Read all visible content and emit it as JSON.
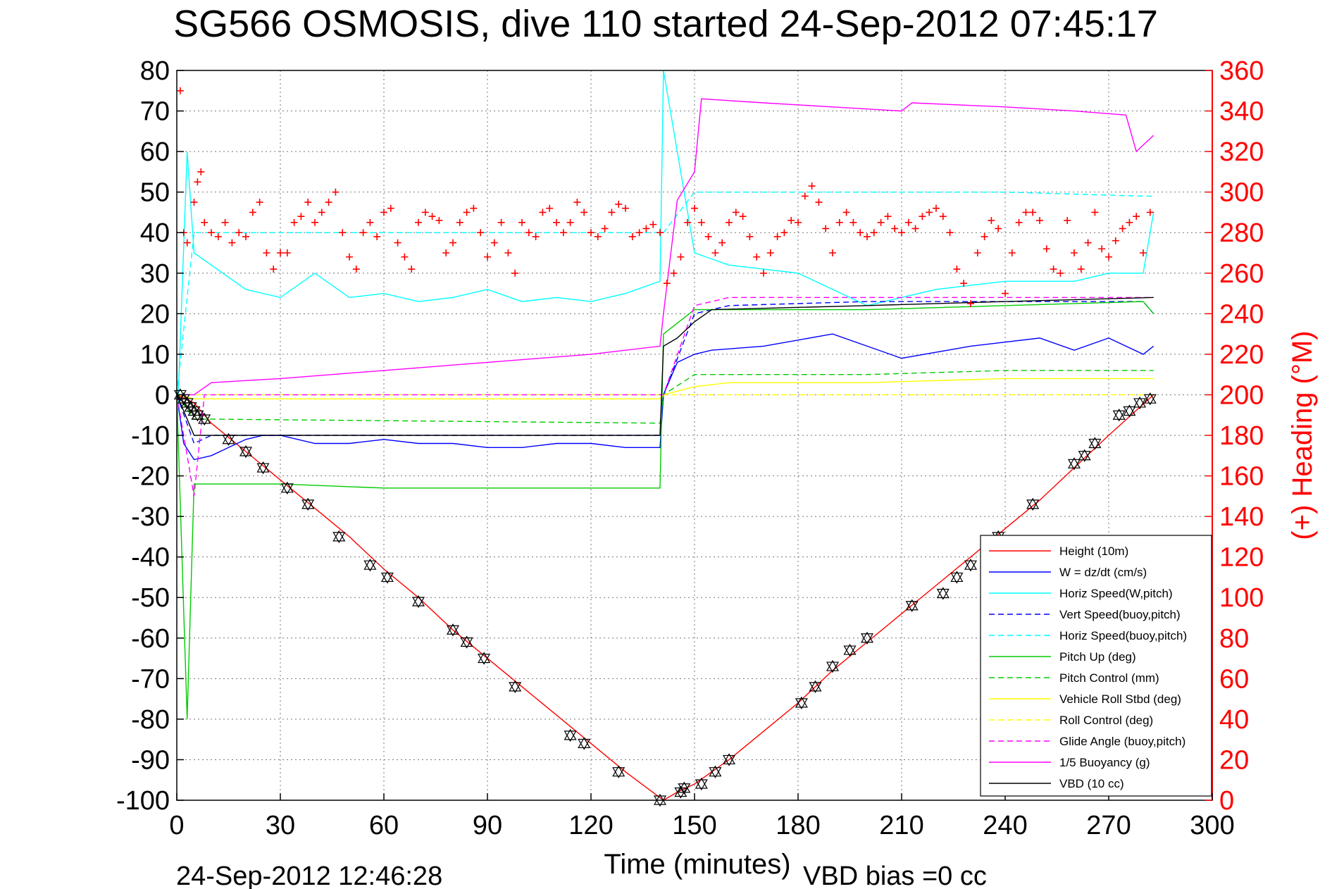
{
  "chart_data": {
    "type": "line",
    "title": "SG566 OSMOSIS, dive 110 started 24-Sep-2012 07:45:17",
    "xlabel": "Time (minutes)",
    "ylabel_right": "(+) Heading (°M)",
    "footer_date": "24-Sep-2012 12:46:28",
    "footer_bias": "VBD bias =0 cc",
    "xlim": [
      0,
      300
    ],
    "ylim": [
      -100,
      80
    ],
    "ylim_right": [
      0,
      360
    ],
    "xticks": [
      "0",
      "30",
      "60",
      "90",
      "120",
      "150",
      "180",
      "210",
      "240",
      "270",
      "300"
    ],
    "yticks": [
      "80",
      "70",
      "60",
      "50",
      "40",
      "30",
      "20",
      "10",
      "0",
      "-10",
      "-20",
      "-30",
      "-40",
      "-50",
      "-60",
      "-70",
      "-80",
      "-90",
      "-100"
    ],
    "yticks_right": [
      "360",
      "340",
      "320",
      "300",
      "280",
      "260",
      "240",
      "220",
      "200",
      "180",
      "160",
      "140",
      "120",
      "100",
      "80",
      "60",
      "40",
      "20",
      "0"
    ],
    "grid": true,
    "legend_position": "bottom-right",
    "colors": {
      "height": "#ff0000",
      "w": "#0000ff",
      "horiz_speed": "#00ffff",
      "pitch": "#00cc00",
      "roll": "#ffff00",
      "glide": "#ff00ff",
      "buoyancy": "#ff00ff",
      "vbd": "#000000",
      "heading": "#ff0000"
    },
    "series": [
      {
        "name": "Height (10m)",
        "color": "#ff0000",
        "dash": false,
        "x": [
          0,
          5,
          10,
          20,
          30,
          40,
          50,
          60,
          70,
          80,
          90,
          100,
          110,
          120,
          130,
          141,
          145,
          150,
          155,
          160,
          170,
          180,
          190,
          200,
          210,
          220,
          230,
          240,
          250,
          260,
          270,
          283
        ],
        "y": [
          0,
          -2,
          -7,
          -14,
          -21,
          -28,
          -35,
          -43,
          -50,
          -58,
          -65,
          -72,
          -79,
          -86,
          -93,
          -100,
          -98,
          -96,
          -93,
          -90,
          -83,
          -76,
          -68,
          -61,
          -54,
          -47,
          -40,
          -33,
          -26,
          -18,
          -10,
          0
        ]
      },
      {
        "name": "W = dz/dt (cm/s)",
        "color": "#0000ff",
        "dash": false,
        "x": [
          0,
          2,
          5,
          10,
          15,
          20,
          25,
          30,
          40,
          50,
          60,
          70,
          80,
          90,
          100,
          110,
          120,
          130,
          140,
          141,
          145,
          150,
          155,
          170,
          190,
          210,
          230,
          250,
          260,
          270,
          280,
          283
        ],
        "y": [
          0,
          -12,
          -16,
          -15,
          -13,
          -11,
          -10,
          -10,
          -12,
          -12,
          -11,
          -12,
          -12,
          -13,
          -13,
          -12,
          -12,
          -13,
          -13,
          0,
          8,
          10,
          11,
          12,
          15,
          9,
          12,
          14,
          11,
          14,
          10,
          12
        ]
      },
      {
        "name": "Horiz Speed(W,pitch)",
        "color": "#00ffff",
        "dash": false,
        "x": [
          0,
          3,
          5,
          10,
          20,
          30,
          40,
          50,
          60,
          70,
          80,
          90,
          100,
          110,
          120,
          130,
          140,
          141,
          150,
          160,
          180,
          200,
          220,
          240,
          260,
          270,
          280,
          283
        ],
        "y": [
          -10,
          60,
          35,
          32,
          26,
          24,
          30,
          24,
          25,
          23,
          24,
          26,
          23,
          24,
          23,
          25,
          28,
          80,
          35,
          32,
          30,
          22,
          26,
          28,
          28,
          30,
          30,
          45
        ]
      },
      {
        "name": "Vert Speed(buoy,pitch)",
        "color": "#0000ff",
        "dash": true,
        "x": [
          0,
          5,
          10,
          140,
          141,
          150,
          160,
          200,
          240,
          280,
          283
        ],
        "y": [
          0,
          -12,
          -10,
          -10,
          0,
          20,
          22,
          23,
          23,
          23,
          20
        ]
      },
      {
        "name": "Horiz Speed(buoy,pitch)",
        "color": "#00ffff",
        "dash": true,
        "x": [
          0,
          5,
          10,
          140,
          141,
          150,
          160,
          200,
          240,
          280,
          283
        ],
        "y": [
          0,
          40,
          40,
          40,
          40,
          50,
          50,
          50,
          50,
          49,
          49
        ]
      },
      {
        "name": "Pitch Up (deg)",
        "color": "#00cc00",
        "dash": false,
        "x": [
          0,
          3,
          5,
          10,
          30,
          60,
          90,
          120,
          140,
          141,
          150,
          160,
          200,
          240,
          280,
          283
        ],
        "y": [
          0,
          -80,
          -22,
          -22,
          -22,
          -23,
          -23,
          -23,
          -23,
          15,
          21,
          21,
          21,
          22,
          23,
          20
        ]
      },
      {
        "name": "Pitch Control (mm)",
        "color": "#00cc00",
        "dash": true,
        "x": [
          0,
          5,
          10,
          140,
          141,
          150,
          160,
          200,
          240,
          280,
          283
        ],
        "y": [
          0,
          -6,
          -6,
          -7,
          0,
          5,
          5,
          5,
          6,
          6,
          6
        ]
      },
      {
        "name": "Vehicle Roll Stbd (deg)",
        "color": "#ffff00",
        "dash": false,
        "x": [
          0,
          5,
          10,
          140,
          141,
          150,
          160,
          200,
          240,
          280,
          283
        ],
        "y": [
          0,
          -1,
          -1,
          -1,
          0,
          2,
          3,
          3,
          4,
          4,
          4
        ]
      },
      {
        "name": "Roll Control (deg)",
        "color": "#ffff00",
        "dash": true,
        "x": [
          0,
          5,
          10,
          140,
          141,
          150,
          160,
          200,
          240,
          280,
          283
        ],
        "y": [
          0,
          0,
          0,
          0,
          0,
          0,
          0,
          0,
          0,
          0,
          0
        ]
      },
      {
        "name": "Glide Angle (buoy,pitch)",
        "color": "#ff00ff",
        "dash": true,
        "x": [
          0,
          5,
          8,
          140,
          141,
          150,
          160,
          200,
          240,
          280,
          283
        ],
        "y": [
          0,
          -25,
          0,
          0,
          0,
          22,
          24,
          24,
          24,
          24,
          24
        ]
      },
      {
        "name": "1/5 Buoyancy (g)",
        "color": "#ff00ff",
        "dash": false,
        "x": [
          0,
          5,
          10,
          30,
          60,
          90,
          120,
          140,
          141,
          145,
          150,
          152,
          170,
          190,
          210,
          213,
          240,
          260,
          275,
          278,
          283
        ],
        "y": [
          0,
          0,
          3,
          4,
          6,
          8,
          10,
          12,
          20,
          48,
          55,
          73,
          72,
          71,
          70,
          72,
          71,
          70,
          69,
          60,
          64
        ]
      },
      {
        "name": "VBD (10 cc)",
        "color": "#000000",
        "dash": false,
        "x": [
          0,
          5,
          10,
          140,
          141,
          145,
          150,
          155,
          200,
          240,
          283
        ],
        "y": [
          0,
          -10,
          -10,
          -10,
          12,
          14,
          18,
          21,
          22,
          23,
          24
        ]
      }
    ],
    "heading_points": {
      "name": "(+) Heading",
      "color": "#ff0000",
      "x": [
        1,
        2,
        3,
        5,
        6,
        7,
        8,
        10,
        12,
        14,
        16,
        18,
        20,
        22,
        24,
        26,
        28,
        30,
        32,
        34,
        36,
        38,
        40,
        42,
        44,
        46,
        48,
        50,
        52,
        54,
        56,
        58,
        60,
        62,
        64,
        66,
        68,
        70,
        72,
        74,
        76,
        78,
        80,
        82,
        84,
        86,
        88,
        90,
        92,
        94,
        96,
        98,
        100,
        102,
        104,
        106,
        108,
        110,
        112,
        114,
        116,
        118,
        120,
        122,
        124,
        126,
        128,
        130,
        132,
        134,
        136,
        138,
        140,
        142,
        144,
        146,
        148,
        150,
        152,
        154,
        156,
        158,
        160,
        162,
        164,
        166,
        168,
        170,
        172,
        174,
        176,
        178,
        180,
        182,
        184,
        186,
        188,
        190,
        192,
        194,
        196,
        198,
        200,
        202,
        204,
        206,
        208,
        210,
        212,
        214,
        216,
        218,
        220,
        222,
        224,
        226,
        228,
        230,
        232,
        234,
        236,
        238,
        240,
        242,
        244,
        246,
        248,
        250,
        252,
        254,
        256,
        258,
        260,
        262,
        264,
        266,
        268,
        270,
        272,
        274,
        276,
        278,
        280,
        282
      ],
      "y": [
        350,
        280,
        275,
        295,
        305,
        310,
        285,
        280,
        278,
        285,
        275,
        280,
        278,
        290,
        295,
        270,
        262,
        270,
        270,
        285,
        288,
        295,
        285,
        290,
        295,
        300,
        280,
        268,
        262,
        280,
        285,
        278,
        290,
        292,
        275,
        268,
        262,
        285,
        290,
        288,
        286,
        270,
        275,
        285,
        290,
        292,
        280,
        268,
        275,
        285,
        270,
        260,
        285,
        280,
        278,
        290,
        292,
        285,
        280,
        285,
        295,
        290,
        280,
        278,
        282,
        290,
        294,
        292,
        278,
        280,
        282,
        284,
        280,
        255,
        260,
        268,
        285,
        292,
        285,
        278,
        270,
        275,
        285,
        290,
        288,
        278,
        268,
        260,
        270,
        278,
        280,
        286,
        285,
        298,
        303,
        295,
        282,
        270,
        285,
        290,
        285,
        280,
        278,
        280,
        285,
        288,
        282,
        280,
        285,
        282,
        288,
        290,
        292,
        288,
        280,
        262,
        255,
        245,
        270,
        278,
        286,
        282,
        250,
        270,
        285,
        290,
        290,
        286,
        272,
        262,
        260,
        286,
        270,
        262,
        275,
        290,
        272,
        268,
        276,
        282,
        285,
        288,
        270,
        290
      ]
    },
    "vbd_triangles": {
      "x": [
        1,
        2,
        3,
        4,
        5,
        6,
        8,
        15,
        20,
        25,
        32,
        38,
        47,
        56,
        61,
        70,
        80,
        84,
        89,
        98,
        114,
        118,
        128,
        140,
        146,
        147,
        152,
        156,
        160,
        181,
        185,
        190,
        195,
        200,
        213,
        222,
        226,
        230,
        238,
        248,
        260,
        263,
        266,
        273,
        276,
        279,
        282
      ],
      "y": [
        0,
        -1,
        -2,
        -3,
        -4,
        -5,
        -6,
        -11,
        -14,
        -18,
        -23,
        -27,
        -35,
        -42,
        -45,
        -51,
        -58,
        -61,
        -65,
        -72,
        -84,
        -86,
        -93,
        -100,
        -98,
        -97,
        -96,
        -93,
        -90,
        -76,
        -72,
        -67,
        -63,
        -60,
        -52,
        -49,
        -45,
        -42,
        -35,
        -27,
        -17,
        -15,
        -12,
        -5,
        -4,
        -2,
        -1
      ]
    }
  }
}
